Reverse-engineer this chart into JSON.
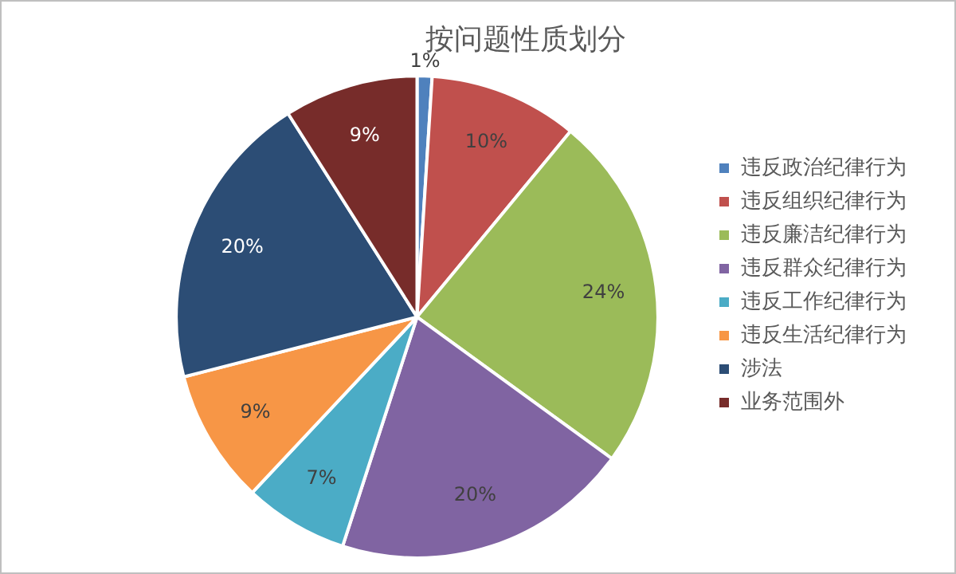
{
  "chart_data": {
    "type": "pie",
    "title": "按问题性质划分",
    "categories": [
      "违反政治纪律行为",
      "违反组织纪律行为",
      "违反廉洁纪律行为",
      "违反群众纪律行为",
      "违反工作纪律行为",
      "违反生活纪律行为",
      "涉法",
      "业务范围外"
    ],
    "values": [
      1,
      10,
      24,
      20,
      7,
      9,
      20,
      9
    ],
    "value_labels": [
      "1%",
      "10%",
      "24%",
      "20%",
      "7%",
      "9%",
      "20%",
      "9%"
    ],
    "colors": [
      "#4f81bd",
      "#c0504d",
      "#9bbb59",
      "#8064a2",
      "#4bacc6",
      "#f79646",
      "#2c4d75",
      "#772c2a"
    ],
    "legend": "right"
  }
}
